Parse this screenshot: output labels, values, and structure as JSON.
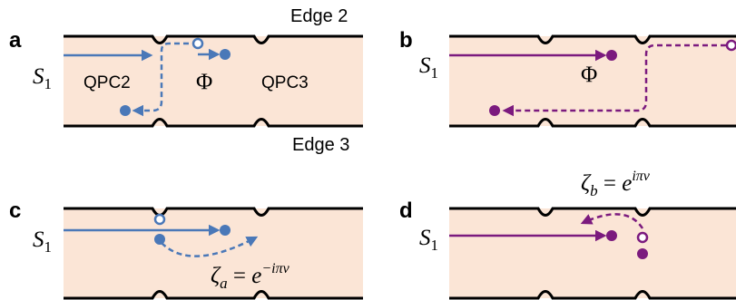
{
  "colors": {
    "channel_fill": "#fbe5d6",
    "edge_line": "#000000",
    "blue": "#4a78b8",
    "purple": "#7b1a7e"
  },
  "labels": {
    "edge2": "Edge 2",
    "edge3": "Edge 3",
    "qpc2": "QPC2",
    "qpc3": "QPC3"
  },
  "panels": {
    "a": {
      "letter": "a",
      "source": "S",
      "source_sub": "1",
      "phi": "Φ"
    },
    "b": {
      "letter": "b",
      "source": "S",
      "source_sub": "1",
      "phi": "Φ"
    },
    "c": {
      "letter": "c",
      "source": "S",
      "source_sub": "1",
      "zeta": "ζ",
      "zeta_sub": "a",
      "eq": " = ",
      "exp_base": "e",
      "exp_power": "−iπν"
    },
    "d": {
      "letter": "d",
      "source": "S",
      "source_sub": "1",
      "zeta": "ζ",
      "zeta_sub": "b",
      "eq": " = ",
      "exp_base": "e",
      "exp_power": "iπν"
    }
  }
}
